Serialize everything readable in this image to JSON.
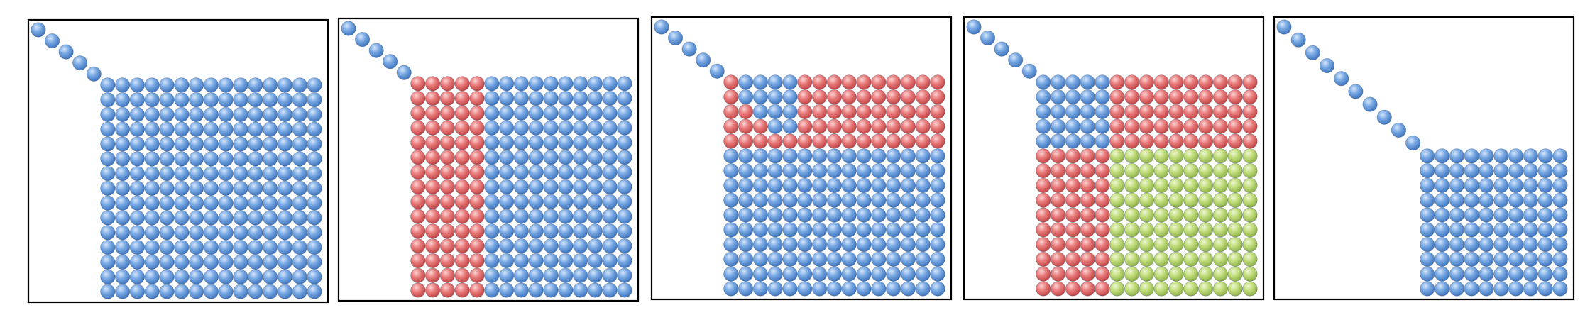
{
  "colors": {
    "blue": "#6b9fdf",
    "red": "#e57373",
    "green": "#bad96f",
    "frame": "#000000",
    "background": "#ffffff"
  },
  "shape": "sphere",
  "panels": [
    {
      "diagonal_dots": 5,
      "grid": {
        "columns": 15,
        "rows": 15,
        "regions": [
          {
            "color": "blue",
            "col_start": 0,
            "col_end": 15,
            "row_start": 0,
            "row_end": 15
          }
        ]
      }
    },
    {
      "diagonal_dots": 5,
      "grid": {
        "columns": 15,
        "rows": 15,
        "regions": [
          {
            "color": "red",
            "col_start": 0,
            "col_end": 5,
            "row_start": 0,
            "row_end": 15
          },
          {
            "color": "blue",
            "col_start": 5,
            "col_end": 15,
            "row_start": 0,
            "row_end": 15
          }
        ]
      }
    },
    {
      "diagonal_dots": 5,
      "grid": {
        "columns": 15,
        "rows": 15,
        "regions": [
          {
            "color": "blue",
            "col_start": 0,
            "col_end": 15,
            "row_start": 0,
            "row_end": 15
          },
          {
            "color": "red",
            "col_start": 5,
            "col_end": 15,
            "row_start": 0,
            "row_end": 5
          },
          {
            "color": "red",
            "col_start": 0,
            "col_end": 5,
            "row_start": 0,
            "row_end": 5,
            "only_lower_left_triangle": true
          }
        ]
      }
    },
    {
      "diagonal_dots": 5,
      "grid": {
        "columns": 15,
        "rows": 15,
        "regions": [
          {
            "color": "blue",
            "col_start": 0,
            "col_end": 5,
            "row_start": 0,
            "row_end": 5
          },
          {
            "color": "red",
            "col_start": 5,
            "col_end": 15,
            "row_start": 0,
            "row_end": 5
          },
          {
            "color": "red",
            "col_start": 0,
            "col_end": 5,
            "row_start": 5,
            "row_end": 15
          },
          {
            "color": "green",
            "col_start": 5,
            "col_end": 15,
            "row_start": 5,
            "row_end": 15
          }
        ]
      }
    },
    {
      "diagonal_dots": 10,
      "grid": {
        "columns": 10,
        "rows": 10,
        "regions": [
          {
            "color": "blue",
            "col_start": 0,
            "col_end": 10,
            "row_start": 0,
            "row_end": 10
          }
        ]
      }
    }
  ]
}
